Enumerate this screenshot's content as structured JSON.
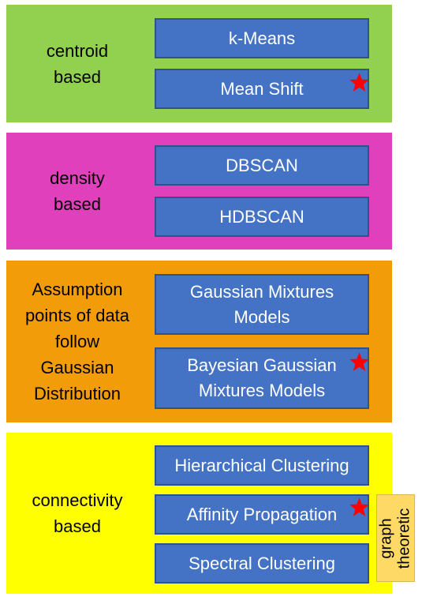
{
  "groups": [
    {
      "label": "centroid\nbased",
      "color": "#92d050",
      "methods": [
        {
          "label": "k-Means",
          "starred": false
        },
        {
          "label": "Mean Shift",
          "starred": true
        }
      ]
    },
    {
      "label": "density\nbased",
      "color": "#e040bc",
      "methods": [
        {
          "label": "DBSCAN",
          "starred": false
        },
        {
          "label": "HDBSCAN",
          "starred": false
        }
      ]
    },
    {
      "label": "Assumption\npoints of data\nfollow\nGaussian\nDistribution",
      "color": "#f29c0a",
      "methods": [
        {
          "label": "Gaussian Mixtures\nModels",
          "starred": false
        },
        {
          "label": "Bayesian Gaussian\nMixtures Models",
          "starred": true
        }
      ]
    },
    {
      "label": "connectivity\nbased",
      "color": "#ffff00",
      "methods": [
        {
          "label": "Hierarchical Clustering",
          "starred": false
        },
        {
          "label": "Affinity Propagation",
          "starred": true
        },
        {
          "label": "Spectral Clustering",
          "starred": false
        }
      ]
    }
  ],
  "side_note": {
    "label": "graph\ntheoretic",
    "color": "#ffd966"
  },
  "method_box_color": "#4472c4",
  "star_color": "#ff0000"
}
